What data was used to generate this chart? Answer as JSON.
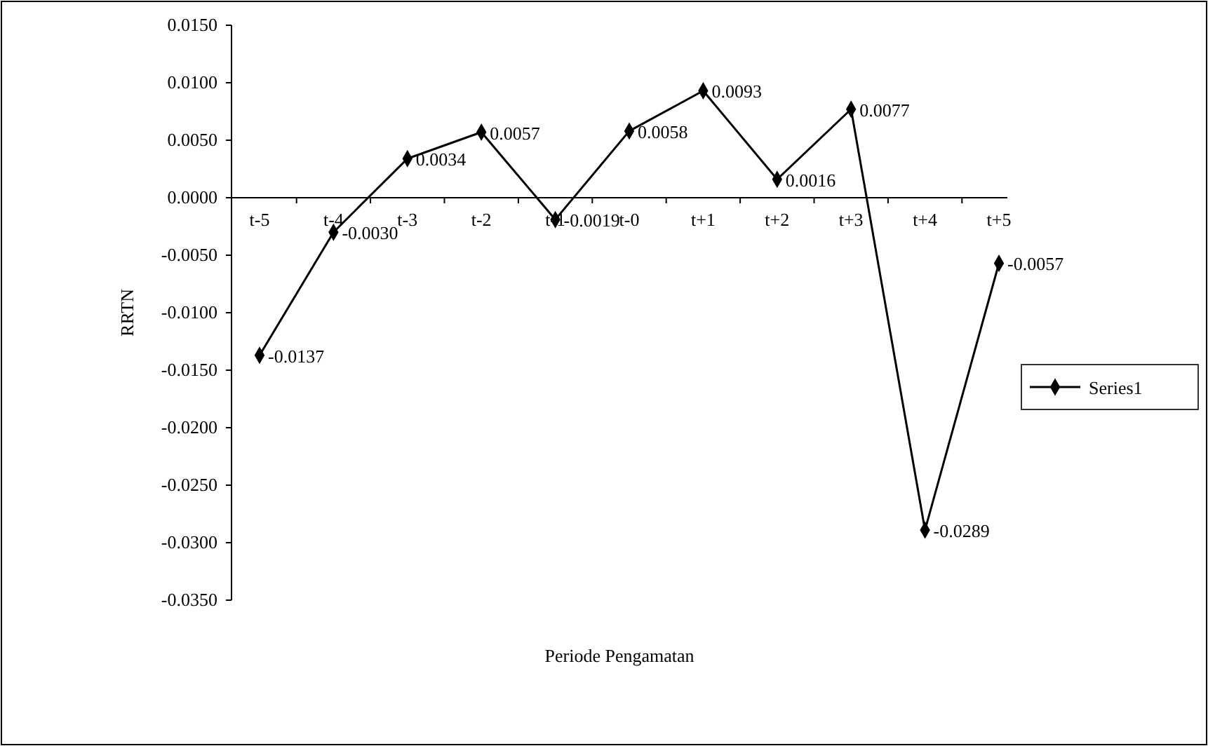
{
  "chart_data": {
    "type": "line",
    "xlabel": "Periode Pengamatan",
    "ylabel": "RRTN",
    "categories": [
      "t-5",
      "t-4",
      "t-3",
      "t-2",
      "t-1",
      "t-0",
      "t+1",
      "t+2",
      "t+3",
      "t+4",
      "t+5"
    ],
    "series": [
      {
        "name": "Series1",
        "color": "#000000",
        "values": [
          -0.0137,
          -0.003,
          0.0034,
          0.0057,
          -0.0019,
          0.0058,
          0.0093,
          0.0016,
          0.0077,
          -0.0289,
          -0.0057
        ],
        "value_labels": [
          "-0.0137",
          "-0.0030",
          "0.0034",
          "0.0057",
          "-0.0019",
          "0.0058",
          "0.0093",
          "0.0016",
          "0.0077",
          "-0.0289",
          "-0.0057"
        ]
      }
    ],
    "ylim": [
      -0.035,
      0.015
    ],
    "yticks": [
      {
        "value": 0.015,
        "label": "0.0150"
      },
      {
        "value": 0.01,
        "label": "0.0100"
      },
      {
        "value": 0.005,
        "label": "0.0050"
      },
      {
        "value": 0,
        "label": "0.0000"
      },
      {
        "value": -0.005,
        "label": "-0.0050"
      },
      {
        "value": -0.01,
        "label": "-0.0100"
      },
      {
        "value": -0.015,
        "label": "-0.0150"
      },
      {
        "value": -0.02,
        "label": "-0.0200"
      },
      {
        "value": -0.025,
        "label": "-0.0250"
      },
      {
        "value": -0.03,
        "label": "-0.0300"
      },
      {
        "value": -0.035,
        "label": "-0.0350"
      }
    ],
    "marker": "diamond",
    "legend": "right"
  }
}
